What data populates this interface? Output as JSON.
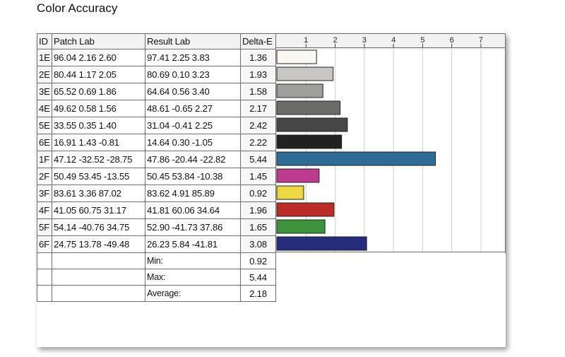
{
  "title": "Color Accuracy",
  "table": {
    "headers": {
      "id": "ID",
      "patch": "Patch Lab",
      "result": "Result Lab",
      "delta": "Delta-E"
    },
    "rows": [
      {
        "id": "1E",
        "patch": "96.04  2.16  2.60",
        "result": "97.41  2.25  3.83",
        "delta": "1.36"
      },
      {
        "id": "2E",
        "patch": "80.44  1.17  2.05",
        "result": "80.69  0.10  3.23",
        "delta": "1.93"
      },
      {
        "id": "3E",
        "patch": "65.52  0.69  1.86",
        "result": "64.64  0.56  3.40",
        "delta": "1.58"
      },
      {
        "id": "4E",
        "patch": "49.62  0.58  1.56",
        "result": "48.61  -0.65  2.27",
        "delta": "2.17"
      },
      {
        "id": "5E",
        "patch": "33.55  0.35  1.40",
        "result": "31.04  -0.41  2.25",
        "delta": "2.42"
      },
      {
        "id": "6E",
        "patch": "16.91  1.43  -0.81",
        "result": "14.64  0.30  -1.05",
        "delta": "2.22"
      },
      {
        "id": "1F",
        "patch": "47.12 -32.52 -28.75",
        "result": "47.86 -20.44 -22.82",
        "delta": "5.44"
      },
      {
        "id": "2F",
        "patch": "50.49  53.45 -13.55",
        "result": "50.45  53.84 -10.38",
        "delta": "1.45"
      },
      {
        "id": "3F",
        "patch": "83.61  3.36  87.02",
        "result": "83.62  4.91  85.89",
        "delta": "0.92"
      },
      {
        "id": "4F",
        "patch": "41.05  60.75  31.17",
        "result": "41.81  60.06  34.64",
        "delta": "1.96"
      },
      {
        "id": "5F",
        "patch": "54.14 -40.76  34.75",
        "result": "52.90 -41.73  37.86",
        "delta": "1.65"
      },
      {
        "id": "6F",
        "patch": "24.75  13.78 -49.48",
        "result": "26.23  5.84 -41.81",
        "delta": "3.08"
      }
    ],
    "stats": [
      {
        "label": "Min:",
        "value": "0.92"
      },
      {
        "label": "Max:",
        "value": "5.44"
      },
      {
        "label": "Average:",
        "value": "2.18"
      }
    ]
  },
  "chart_data": {
    "type": "bar",
    "orientation": "horizontal",
    "categories": [
      "1E",
      "2E",
      "3E",
      "4E",
      "5E",
      "6E",
      "1F",
      "2F",
      "3F",
      "4F",
      "5F",
      "6F"
    ],
    "values": [
      1.36,
      1.93,
      1.58,
      2.17,
      2.42,
      2.22,
      5.44,
      1.45,
      0.92,
      1.96,
      1.65,
      3.08
    ],
    "colors": [
      "#faf7f3",
      "#c8c7c3",
      "#a09f9b",
      "#6b6b69",
      "#464646",
      "#212121",
      "#2c6c97",
      "#bd3a8f",
      "#ecd843",
      "#b82b27",
      "#3c923a",
      "#262b7a"
    ],
    "xticks": [
      "1",
      "2",
      "3",
      "4",
      "5",
      "6",
      "7"
    ],
    "xlim": [
      0,
      7.8
    ],
    "grid": true,
    "title": "",
    "xlabel": "",
    "ylabel": ""
  }
}
